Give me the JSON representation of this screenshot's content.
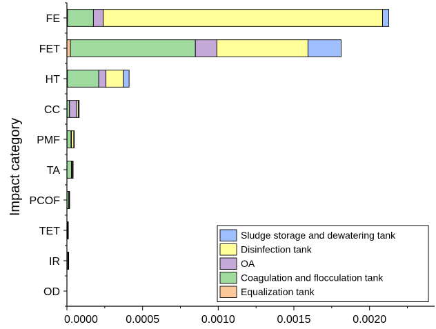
{
  "chart_data": {
    "type": "bar",
    "orientation": "horizontal",
    "stacked": true,
    "ylabel": "Impact category",
    "xlabel": "",
    "xlim": [
      0,
      0.00243
    ],
    "xticks": [
      0.0,
      0.0005,
      0.001,
      0.0015,
      0.002
    ],
    "xtick_labels": [
      "0.0000",
      "0.0005",
      "0.0010",
      "0.0015",
      "0.0020"
    ],
    "categories": [
      "FE",
      "FET",
      "HT",
      "CC",
      "PMF",
      "TA",
      "PCOF",
      "TET",
      "IR",
      "OD"
    ],
    "series": [
      {
        "name": "Equalization tank",
        "color": "#fcc99b",
        "values": [
          4e-06,
          2.3e-05,
          3e-06,
          1e-06,
          1e-06,
          5e-07,
          3e-07,
          1e-07,
          2e-07,
          0.0
        ]
      },
      {
        "name": "Coagulation and flocculation tank",
        "color": "#9fdb9f",
        "values": [
          0.000171,
          0.000826,
          0.000207,
          1.6e-05,
          2.6e-05,
          2.9e-05,
          1.2e-05,
          4e-06,
          6e-06,
          0.0
        ]
      },
      {
        "name": "OA",
        "color": "#c4a8d8",
        "values": [
          6.5e-05,
          0.000142,
          4.8e-05,
          4.8e-05,
          3e-06,
          2e-06,
          1e-06,
          1e-06,
          1e-06,
          0.0
        ]
      },
      {
        "name": "Disinfection tank",
        "color": "#fffe98",
        "values": [
          0.001846,
          0.000602,
          0.000115,
          1e-05,
          1.5e-05,
          6e-06,
          1e-06,
          5e-07,
          1e-06,
          0.0
        ]
      },
      {
        "name": "Sludge storage and dewatering tank",
        "color": "#9fbfff",
        "values": [
          4.1e-05,
          0.000219,
          3.8e-05,
          6e-06,
          3e-06,
          3e-06,
          1e-06,
          5e-07,
          1e-06,
          0.0
        ]
      }
    ],
    "legend_order": [
      "Sludge storage and dewatering tank",
      "Disinfection tank",
      "OA",
      "Coagulation and flocculation tank",
      "Equalization tank"
    ],
    "legend_position": "lower-right",
    "grid": false
  }
}
